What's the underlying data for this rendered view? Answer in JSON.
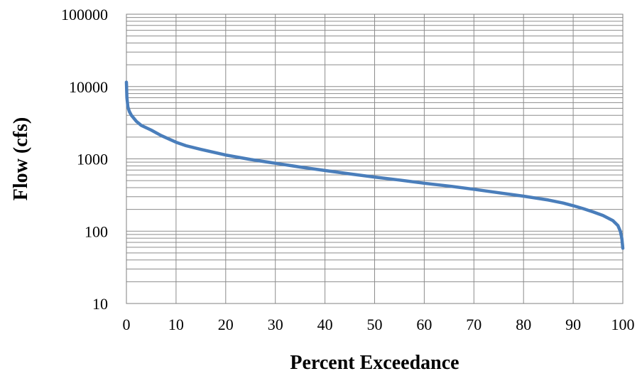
{
  "chart_data": {
    "type": "line",
    "title": "",
    "xlabel": "Percent Exceedance",
    "ylabel": "Flow (cfs)",
    "xlim": [
      0,
      100
    ],
    "ylim": [
      10,
      100000
    ],
    "yscale": "log",
    "grid": true,
    "legend": "none",
    "x_ticks": [
      "0",
      "10",
      "20",
      "30",
      "40",
      "50",
      "60",
      "70",
      "80",
      "90",
      "100"
    ],
    "y_ticks": [
      "10",
      "100",
      "1000",
      "10000",
      "100000"
    ],
    "series": [
      {
        "color": "#4a7ebb",
        "x": [
          0,
          0.1,
          0.3,
          0.6,
          1,
          2,
          3,
          5,
          7,
          10,
          12,
          15,
          20,
          25,
          30,
          35,
          40,
          45,
          50,
          55,
          60,
          65,
          70,
          75,
          80,
          85,
          88,
          90,
          92,
          94,
          96,
          98,
          99,
          99.5,
          99.8,
          100
        ],
        "y": [
          11500,
          7000,
          5200,
          4500,
          4000,
          3300,
          2900,
          2500,
          2100,
          1700,
          1520,
          1350,
          1130,
          980,
          870,
          770,
          690,
          620,
          560,
          510,
          460,
          420,
          380,
          340,
          305,
          270,
          245,
          225,
          205,
          185,
          165,
          140,
          120,
          100,
          80,
          58
        ]
      }
    ]
  }
}
